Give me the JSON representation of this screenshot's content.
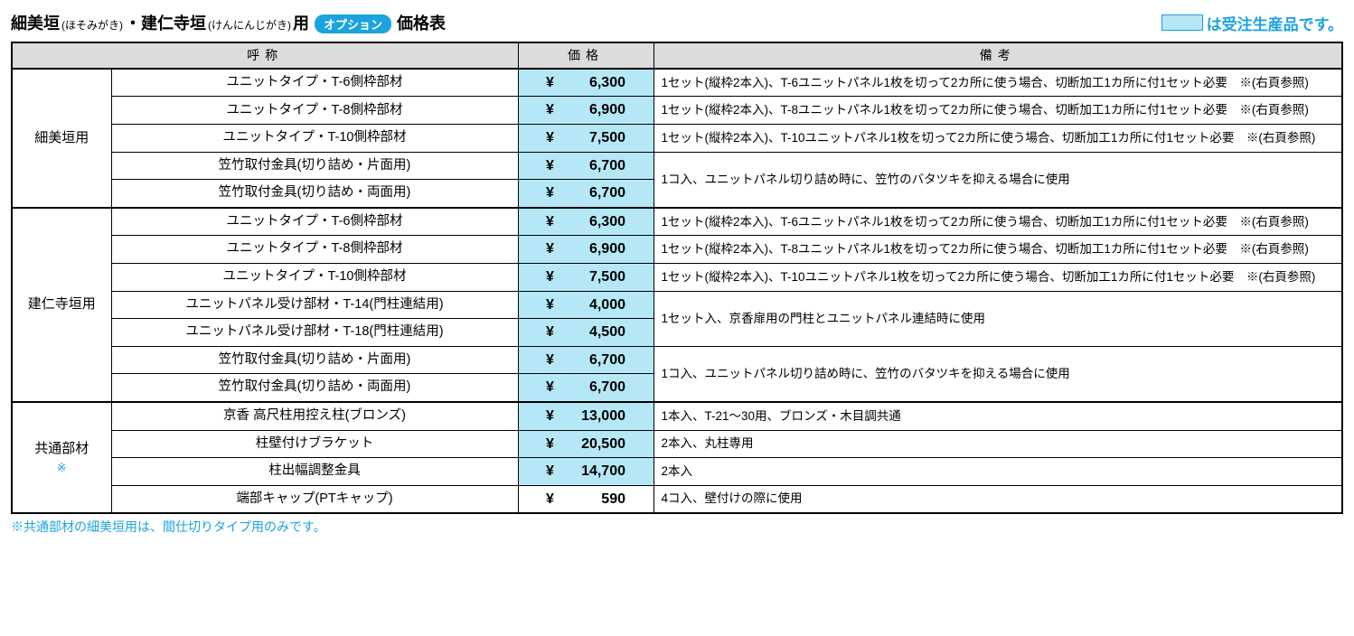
{
  "header": {
    "title_parts": [
      {
        "bold": "細美垣",
        "ruby": "(ほそみがき)"
      },
      {
        "bold": "・建仁寺垣",
        "ruby": "(けんにんじがき)"
      },
      {
        "bold": "用"
      }
    ],
    "option_badge": "オプション",
    "title_suffix": "価格表",
    "legend_text": "は受注生産品です。"
  },
  "columns": {
    "name": "呼称",
    "price": "価格",
    "note": "備考"
  },
  "groups": [
    {
      "category": "細美垣用",
      "category_note": "",
      "rows": [
        {
          "name": "ユニットタイプ・T-6側枠部材",
          "price": "6,300",
          "made_to_order": true,
          "note": "1セット(縦枠2本入)、T-6ユニットパネル1枚を切って2カ所に使う場合、切断加工1カ所に付1セット必要　※(右頁参照)"
        },
        {
          "name": "ユニットタイプ・T-8側枠部材",
          "price": "6,900",
          "made_to_order": true,
          "note": "1セット(縦枠2本入)、T-8ユニットパネル1枚を切って2カ所に使う場合、切断加工1カ所に付1セット必要　※(右頁参照)"
        },
        {
          "name": "ユニットタイプ・T-10側枠部材",
          "price": "7,500",
          "made_to_order": true,
          "note": "1セット(縦枠2本入)、T-10ユニットパネル1枚を切って2カ所に使う場合、切断加工1カ所に付1セット必要　※(右頁参照)"
        },
        {
          "name": "笠竹取付金具(切り詰め・片面用)",
          "price": "6,700",
          "made_to_order": true,
          "note": "1コ入、ユニットパネル切り詰め時に、笠竹のバタツキを抑える場合に使用",
          "note_span": 2
        },
        {
          "name": "笠竹取付金具(切り詰め・両面用)",
          "price": "6,700",
          "made_to_order": true
        }
      ]
    },
    {
      "category": "建仁寺垣用",
      "category_note": "",
      "rows": [
        {
          "name": "ユニットタイプ・T-6側枠部材",
          "price": "6,300",
          "made_to_order": true,
          "note": "1セット(縦枠2本入)、T-6ユニットパネル1枚を切って2カ所に使う場合、切断加工1カ所に付1セット必要　※(右頁参照)"
        },
        {
          "name": "ユニットタイプ・T-8側枠部材",
          "price": "6,900",
          "made_to_order": true,
          "note": "1セット(縦枠2本入)、T-8ユニットパネル1枚を切って2カ所に使う場合、切断加工1カ所に付1セット必要　※(右頁参照)"
        },
        {
          "name": "ユニットタイプ・T-10側枠部材",
          "price": "7,500",
          "made_to_order": true,
          "note": "1セット(縦枠2本入)、T-10ユニットパネル1枚を切って2カ所に使う場合、切断加工1カ所に付1セット必要　※(右頁参照)"
        },
        {
          "name": "ユニットパネル受け部材・T-14(門柱連結用)",
          "price": "4,000",
          "made_to_order": true,
          "note": "1セット入、京香扉用の門柱とユニットパネル連結時に使用",
          "note_span": 2
        },
        {
          "name": "ユニットパネル受け部材・T-18(門柱連結用)",
          "price": "4,500",
          "made_to_order": true
        },
        {
          "name": "笠竹取付金具(切り詰め・片面用)",
          "price": "6,700",
          "made_to_order": true,
          "note": "1コ入、ユニットパネル切り詰め時に、笠竹のバタツキを抑える場合に使用",
          "note_span": 2
        },
        {
          "name": "笠竹取付金具(切り詰め・両面用)",
          "price": "6,700",
          "made_to_order": true
        }
      ]
    },
    {
      "category": "共通部材",
      "category_note": "※",
      "rows": [
        {
          "name": "京香 高尺柱用控え柱(ブロンズ)",
          "price": "13,000",
          "made_to_order": true,
          "note": "1本入、T-21～30用、ブロンズ・木目調共通"
        },
        {
          "name": "柱壁付けブラケット",
          "price": "20,500",
          "made_to_order": true,
          "note": "2本入、丸柱専用"
        },
        {
          "name": "柱出幅調整金具",
          "price": "14,700",
          "made_to_order": true,
          "note": "2本入"
        },
        {
          "name": "端部キャップ(PTキャップ)",
          "price": "590",
          "made_to_order": false,
          "note": "4コ入、壁付けの際に使用"
        }
      ]
    }
  ],
  "footnote": "※共通部材の細美垣用は、間仕切りタイプ用のみです。",
  "style": {
    "made_to_order_bg": "#b6e7f7",
    "accent": "#1aa3df",
    "header_bg": "#dcdcdc",
    "border": "#000000"
  }
}
